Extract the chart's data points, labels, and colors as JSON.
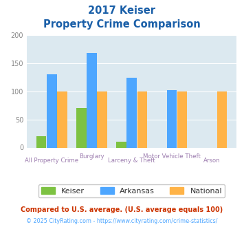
{
  "title_line1": "2017 Keiser",
  "title_line2": "Property Crime Comparison",
  "categories": [
    "All Property Crime",
    "Burglary",
    "Larceny & Theft",
    "Motor Vehicle Theft",
    "Arson"
  ],
  "keiser": [
    20,
    70,
    10,
    0,
    0
  ],
  "arkansas": [
    130,
    168,
    124,
    102,
    0
  ],
  "national": [
    100,
    100,
    100,
    100,
    100
  ],
  "keiser_color": "#7dc242",
  "arkansas_color": "#4da6ff",
  "national_color": "#ffb347",
  "bg_color": "#dce9f0",
  "title_color": "#1a5fa8",
  "xlabel_top_color": "#9e7fb0",
  "xlabel_bot_color": "#9e7fb0",
  "ylabel_color": "#888888",
  "ylim": [
    0,
    200
  ],
  "yticks": [
    0,
    50,
    100,
    150,
    200
  ],
  "footnote1": "Compared to U.S. average. (U.S. average equals 100)",
  "footnote2": "© 2025 CityRating.com - https://www.cityrating.com/crime-statistics/",
  "footnote1_color": "#cc3300",
  "footnote2_color": "#4da6ff",
  "legend_labels": [
    "Keiser",
    "Arkansas",
    "National"
  ]
}
